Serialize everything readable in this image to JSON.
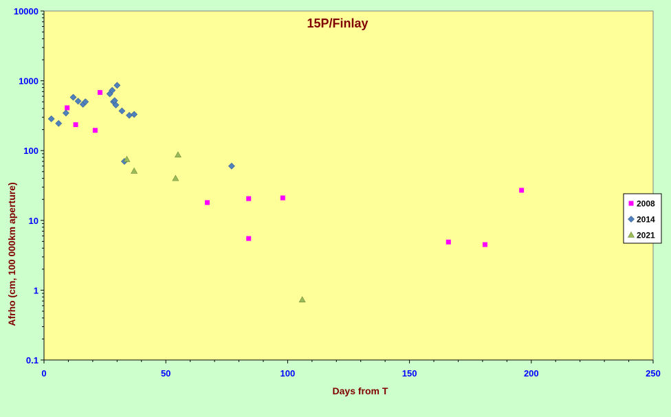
{
  "chart_data": {
    "type": "scatter",
    "title": "15P/Finlay",
    "xlabel": "Days from T",
    "ylabel": "Afrho (cm, 100 000km aperture)",
    "xlim": [
      0,
      250
    ],
    "ylim": [
      0.1,
      10000
    ],
    "y_scale": "log",
    "x_ticks": [
      0,
      50,
      100,
      150,
      200,
      250
    ],
    "y_ticks": [
      0.1,
      1,
      10,
      100,
      1000,
      10000
    ],
    "x_tick_labels": [
      "0",
      "50",
      "100",
      "150",
      "200",
      "250"
    ],
    "y_tick_labels": [
      "0.1",
      "1",
      "10",
      "100",
      "1000",
      "10000"
    ],
    "grid": false,
    "legend_position": "right",
    "colors": {
      "page_background": "#ccffcc",
      "plot_background": "#ffff99",
      "title": "#800000",
      "axis_label": "#800000",
      "tick_label": "#0000ff"
    },
    "series": [
      {
        "name": "2008",
        "marker": "square",
        "color": "#ff00ff",
        "points": [
          [
            9.5,
            410
          ],
          [
            13,
            235
          ],
          [
            21,
            195
          ],
          [
            23,
            680
          ],
          [
            67,
            18
          ],
          [
            84,
            20.5
          ],
          [
            84,
            5.5
          ],
          [
            98,
            21
          ],
          [
            166,
            4.9
          ],
          [
            181,
            4.5
          ],
          [
            196,
            27
          ]
        ]
      },
      {
        "name": "2014",
        "marker": "diamond",
        "color": "#4f81bd",
        "points": [
          [
            3,
            285
          ],
          [
            6,
            245
          ],
          [
            9,
            345
          ],
          [
            12,
            580
          ],
          [
            14,
            510
          ],
          [
            16,
            460
          ],
          [
            17,
            500
          ],
          [
            27,
            650
          ],
          [
            28,
            730
          ],
          [
            28.5,
            500
          ],
          [
            29,
            520
          ],
          [
            29.5,
            450
          ],
          [
            30,
            860
          ],
          [
            32,
            370
          ],
          [
            33,
            70
          ],
          [
            35,
            320
          ],
          [
            37,
            330
          ],
          [
            77,
            60
          ]
        ]
      },
      {
        "name": "2021",
        "marker": "triangle",
        "color": "#9bbb59",
        "points": [
          [
            34,
            75
          ],
          [
            37,
            51
          ],
          [
            54,
            40
          ],
          [
            55,
            87
          ],
          [
            106,
            0.73
          ]
        ]
      }
    ]
  }
}
